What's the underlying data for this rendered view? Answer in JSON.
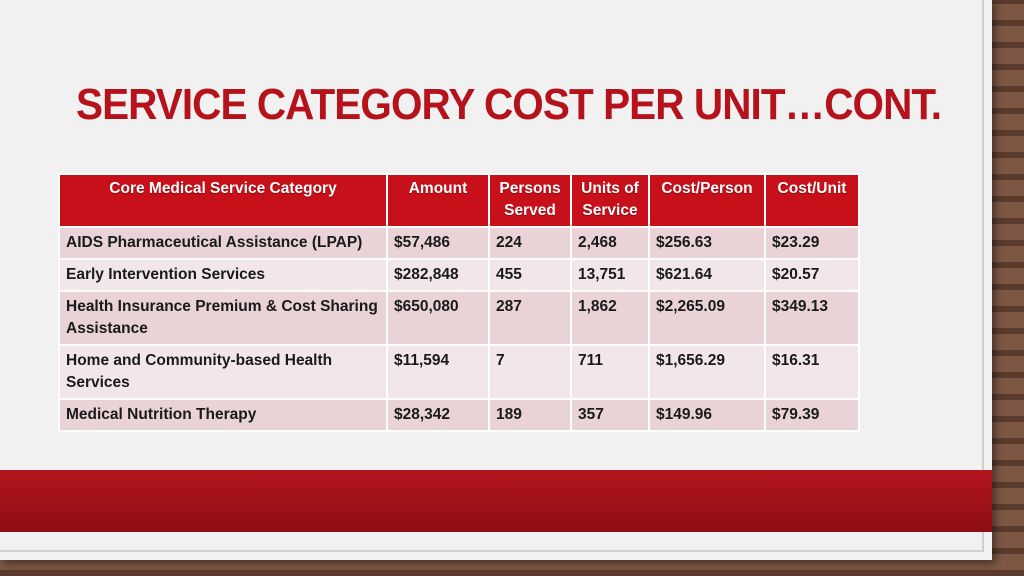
{
  "slide": {
    "title": "SERVICE CATEGORY COST PER UNIT…CONT."
  },
  "table": {
    "headers": [
      "Core Medical Service Category",
      "Amount",
      "Persons Served",
      "Units of Service",
      "Cost/Person",
      "Cost/Unit"
    ],
    "rows": [
      [
        "AIDS Pharmaceutical Assistance (LPAP)",
        "$57,486",
        "224",
        "2,468",
        "$256.63",
        "$23.29"
      ],
      [
        "Early Intervention Services",
        "$282,848",
        "455",
        "13,751",
        "$621.64",
        "$20.57"
      ],
      [
        "Health Insurance Premium & Cost Sharing Assistance",
        "$650,080",
        "287",
        "1,862",
        "$2,265.09",
        "$349.13"
      ],
      [
        "Home and Community-based Health Services",
        "$11,594",
        "7",
        "711",
        "$1,656.29",
        "$16.31"
      ],
      [
        "Medical Nutrition Therapy",
        "$28,342",
        "189",
        "357",
        "$149.96",
        "$79.39"
      ]
    ]
  },
  "colors": {
    "accent": "#b5121b",
    "header_fill": "#c8101a",
    "row_odd": "#e9d3d6",
    "row_even": "#f2e6e8",
    "footer_band": "#a3121a"
  }
}
